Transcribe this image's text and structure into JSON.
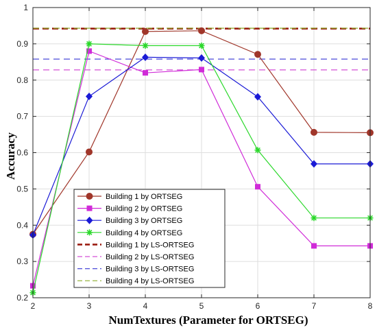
{
  "chart_data": {
    "type": "line",
    "title": "",
    "xlabel": "NumTextures (Parameter for ORTSEG)",
    "ylabel": "Accuracy",
    "x": [
      2,
      3,
      4,
      5,
      6,
      7,
      8
    ],
    "xlim": [
      2,
      8
    ],
    "ylim": [
      0.2,
      1.0
    ],
    "xticks": [
      "2",
      "3",
      "4",
      "5",
      "6",
      "7",
      "8"
    ],
    "yticks": [
      "0.2",
      "0.3",
      "0.4",
      "0.5",
      "0.6",
      "0.7",
      "0.8",
      "0.9",
      "1"
    ],
    "grid": true,
    "legend_position": "bottom-left",
    "series": [
      {
        "name": "Building 1 by ORTSEG",
        "values": [
          0.375,
          0.602,
          0.934,
          0.936,
          0.871,
          0.656,
          0.655
        ],
        "color": "#a0362a",
        "marker": "circle",
        "style": "solid"
      },
      {
        "name": "Building 2 by ORTSEG",
        "values": [
          0.233,
          0.88,
          0.82,
          0.829,
          0.506,
          0.343,
          0.343
        ],
        "color": "#d02bd8",
        "marker": "square",
        "style": "solid"
      },
      {
        "name": "Building 3 by ORTSEG",
        "values": [
          0.373,
          0.755,
          0.863,
          0.861,
          0.754,
          0.569,
          0.569
        ],
        "color": "#1a1ad6",
        "marker": "diamond",
        "style": "solid"
      },
      {
        "name": "Building 4 by ORTSEG",
        "values": [
          0.214,
          0.9,
          0.895,
          0.895,
          0.607,
          0.42,
          0.42
        ],
        "color": "#2ad82a",
        "marker": "asterisk",
        "style": "solid"
      },
      {
        "name": "Building 1 by LS-ORTSEG",
        "values": [
          0.942,
          0.942,
          0.942,
          0.942,
          0.942,
          0.942,
          0.942
        ],
        "color": "#9b1c10",
        "marker": "none",
        "style": "dashed-bold"
      },
      {
        "name": "Building 2 by LS-ORTSEG",
        "values": [
          0.828,
          0.828,
          0.828,
          0.828,
          0.828,
          0.828,
          0.828
        ],
        "color": "#d34fd6",
        "marker": "none",
        "style": "dashed"
      },
      {
        "name": "Building 3 by LS-ORTSEG",
        "values": [
          0.858,
          0.858,
          0.858,
          0.858,
          0.858,
          0.858,
          0.858
        ],
        "color": "#4a4ad8",
        "marker": "none",
        "style": "dashed"
      },
      {
        "name": "Building 4 by LS-ORTSEG",
        "values": [
          0.943,
          0.943,
          0.943,
          0.943,
          0.943,
          0.943,
          0.943
        ],
        "color": "#8aab2a",
        "marker": "none",
        "style": "dashed"
      }
    ]
  }
}
